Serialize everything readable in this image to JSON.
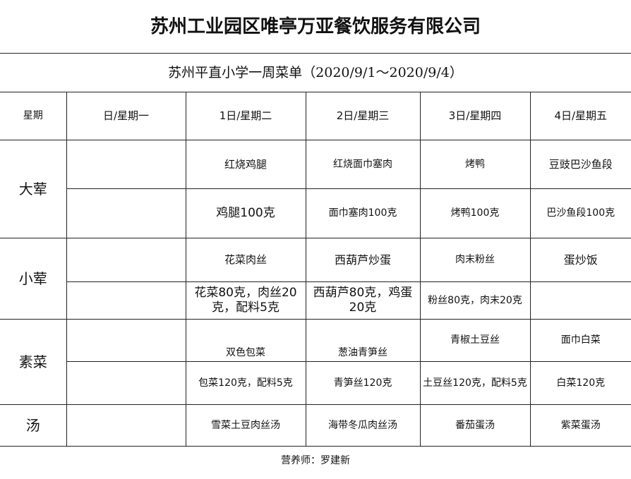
{
  "title": "苏州工业园区唯亭万亚餐饮服务有限公司",
  "subtitle": "苏州平直小学一周菜单（2020/9/1～2020/9/4）",
  "header": [
    "星期",
    "日/星期一",
    "1日/星期二",
    "2日/星期三",
    "3日/星期四",
    "4日/星期五"
  ],
  "rows": [
    {
      "category": "大荤",
      "dishes": [
        "",
        "红烧鸡腿",
        "红烧面巾塞肉",
        "烤鸭",
        "豆豉巴沙鱼段"
      ],
      "portions": [
        "",
        "鸡腿100克",
        "面巾塞肉100克",
        "烤鸭100克",
        "巴沙鱼段100克"
      ]
    },
    {
      "category": "小荤",
      "dishes": [
        "",
        "花菜肉丝",
        "西葫芦炒蛋",
        "肉末粉丝",
        "蛋炒饭"
      ],
      "portions": [
        "",
        "花菜80克，肉丝20克，配料5克",
        "西葫芦80克，鸡蛋20克",
        "粉丝80克，肉末20克",
        ""
      ]
    },
    {
      "category": "素菜",
      "dishes": [
        "",
        "双色包菜",
        "葱油青笋丝",
        "青椒土豆丝",
        "面巾白菜"
      ],
      "portions": [
        "",
        "包菜120克，配料5克",
        "青笋丝120克",
        "土豆丝120克，配料5克",
        "白菜120克"
      ]
    },
    {
      "category": "汤",
      "dishes": [
        "",
        "雪菜土豆肉丝汤",
        "海带冬瓜肉丝汤",
        "番茄蛋汤",
        "紫菜蛋汤"
      ]
    }
  ],
  "footer": "营养师：罗建新"
}
